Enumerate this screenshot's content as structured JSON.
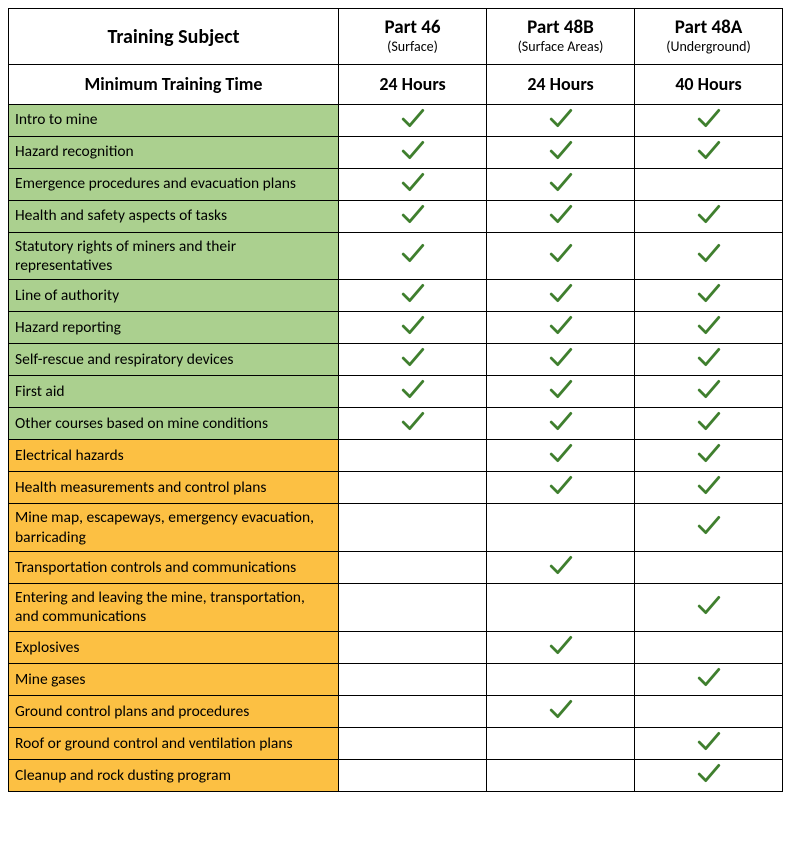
{
  "colors": {
    "green_row": "#abd08f",
    "yellow_row": "#fcc043",
    "check_stroke": "#3f7f2e",
    "border": "#000000",
    "bg": "#ffffff",
    "text": "#000000"
  },
  "typography": {
    "family": "Calibri, 'Segoe UI', Arial, sans-serif",
    "header_title_pt": 14,
    "header_sub_pt": 10,
    "subject_header_pt": 15,
    "min_row_pt": 13,
    "body_pt": 11.5
  },
  "header": {
    "subject_label": "Training Subject",
    "parts": [
      {
        "title": "Part 46",
        "sub": "(Surface)"
      },
      {
        "title": "Part 48B",
        "sub": "(Surface Areas)"
      },
      {
        "title": "Part 48A",
        "sub": "(Underground)"
      }
    ]
  },
  "min_row": {
    "label": "Minimum Training Time",
    "values": [
      "24 Hours",
      "24 Hours",
      "40 Hours"
    ]
  },
  "rows": [
    {
      "group": "green",
      "subject": "Intro to mine",
      "checks": [
        true,
        true,
        true
      ]
    },
    {
      "group": "green",
      "subject": "Hazard recognition",
      "checks": [
        true,
        true,
        true
      ]
    },
    {
      "group": "green",
      "subject": "Emergence procedures and evacuation plans",
      "checks": [
        true,
        true,
        false
      ]
    },
    {
      "group": "green",
      "subject": "Health and safety aspects of tasks",
      "checks": [
        true,
        true,
        true
      ]
    },
    {
      "group": "green",
      "subject": "Statutory rights of miners and their representatives",
      "checks": [
        true,
        true,
        true
      ]
    },
    {
      "group": "green",
      "subject": "Line of authority",
      "checks": [
        true,
        true,
        true
      ]
    },
    {
      "group": "green",
      "subject": "Hazard reporting",
      "checks": [
        true,
        true,
        true
      ]
    },
    {
      "group": "green",
      "subject": "Self-rescue and respiratory devices",
      "checks": [
        true,
        true,
        true
      ]
    },
    {
      "group": "green",
      "subject": "First aid",
      "checks": [
        true,
        true,
        true
      ]
    },
    {
      "group": "green",
      "subject": "Other courses based on mine conditions",
      "checks": [
        true,
        true,
        true
      ]
    },
    {
      "group": "yellow",
      "subject": "Electrical hazards",
      "checks": [
        false,
        true,
        true
      ]
    },
    {
      "group": "yellow",
      "subject": "Health measurements and control plans",
      "checks": [
        false,
        true,
        true
      ]
    },
    {
      "group": "yellow",
      "subject": "Mine map, escapeways, emergency evacuation, barricading",
      "checks": [
        false,
        false,
        true
      ]
    },
    {
      "group": "yellow",
      "subject": "Transportation controls and communications",
      "checks": [
        false,
        true,
        false
      ]
    },
    {
      "group": "yellow",
      "subject": "Entering and leaving the mine, transportation, and communications",
      "checks": [
        false,
        false,
        true
      ]
    },
    {
      "group": "yellow",
      "subject": "Explosives",
      "checks": [
        false,
        true,
        false
      ]
    },
    {
      "group": "yellow",
      "subject": "Mine gases",
      "checks": [
        false,
        false,
        true
      ]
    },
    {
      "group": "yellow",
      "subject": "Ground control plans and procedures",
      "checks": [
        false,
        true,
        false
      ]
    },
    {
      "group": "yellow",
      "subject": "Roof or ground control and ventilation plans",
      "checks": [
        false,
        false,
        true
      ]
    },
    {
      "group": "yellow",
      "subject": "Cleanup and rock dusting program",
      "checks": [
        false,
        false,
        true
      ]
    }
  ]
}
